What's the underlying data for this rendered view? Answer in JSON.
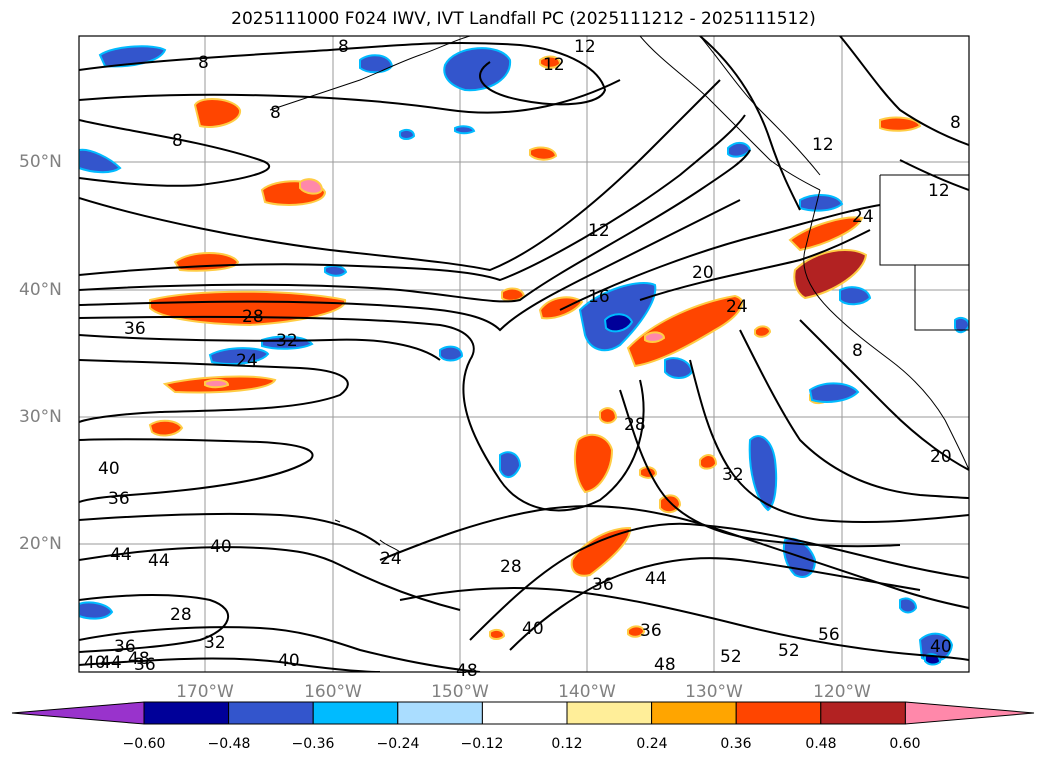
{
  "title": "2025111000 F024 IWV, IVT Landfall PC (2025111212 - 2025111512)",
  "map": {
    "lat_labels": [
      "50°N",
      "40°N",
      "30°N",
      "20°N"
    ],
    "lon_labels": [
      "170°W",
      "160°W",
      "150°W",
      "140°W",
      "130°W",
      "120°W"
    ]
  },
  "contour_labels": [
    "8",
    "8",
    "8",
    "8",
    "12",
    "12",
    "12",
    "12",
    "12",
    "8",
    "16",
    "20",
    "24",
    "24",
    "28",
    "28",
    "24",
    "32",
    "32",
    "36",
    "36",
    "40",
    "40",
    "44",
    "44",
    "36",
    "28",
    "36",
    "44",
    "48",
    "52",
    "52",
    "56",
    "40",
    "24",
    "28",
    "32",
    "36",
    "40",
    "44",
    "48",
    "36",
    "40",
    "20",
    "40",
    "48",
    "8"
  ],
  "colorbar": {
    "ticks": [
      "−0.60",
      "−0.48",
      "−0.36",
      "−0.24",
      "−0.12",
      "0.12",
      "0.24",
      "0.36",
      "0.48",
      "0.60"
    ],
    "colors": [
      "#9933cc",
      "#000099",
      "#3355cc",
      "#00bbff",
      "#aaddff",
      "#ffffff",
      "#ffee99",
      "#ffa500",
      "#ff4500",
      "#b22222",
      "#ff88aa",
      "#ff88aa"
    ],
    "extend": "both"
  }
}
